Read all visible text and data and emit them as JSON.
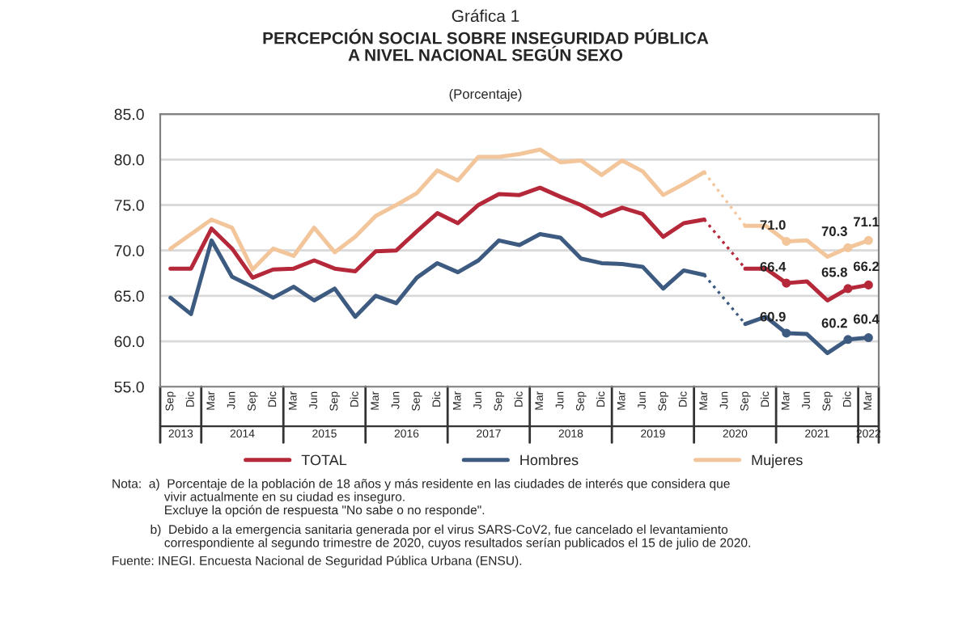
{
  "chart_data": {
    "type": "line",
    "title": "Gráfica 1",
    "subtitle": "PERCEPCIÓN SOCIAL SOBRE INSEGURIDAD PÚBLICA\nA NIVEL NACIONAL SEGÚN SEXO",
    "categories": [
      "Sep",
      "Dic",
      "Mar",
      "Jun",
      "Sep",
      "Dic",
      "Mar",
      "Jun",
      "Sep",
      "Dic",
      "Mar",
      "Jun",
      "Sep",
      "Dic",
      "Mar",
      "Jun",
      "Sep",
      "Dic",
      "Mar",
      "Jun",
      "Sep",
      "Dic",
      "Mar",
      "Jun",
      "Sep",
      "Dic",
      "Mar",
      "Jun",
      "Sep",
      "Dic",
      "Mar",
      "Jun",
      "Sep",
      "Dic",
      "Mar"
    ],
    "series": [
      {
        "name": "TOTAL",
        "color": "#b5283a",
        "values": [
          68.0,
          68.0,
          72.4,
          70.2,
          67.0,
          67.9,
          68.0,
          68.9,
          68.0,
          67.7,
          69.9,
          70.0,
          72.1,
          74.1,
          73.0,
          75.0,
          76.2,
          76.1,
          76.9,
          75.9,
          75.0,
          73.8,
          74.7,
          74.0,
          71.5,
          73.0,
          73.4,
          null,
          68.0,
          68.0,
          66.4,
          66.6,
          64.5,
          65.8,
          66.2
        ],
        "value_labels": [
          null,
          null,
          null,
          null,
          null,
          null,
          null,
          null,
          null,
          null,
          null,
          null,
          null,
          null,
          null,
          null,
          null,
          null,
          null,
          null,
          null,
          null,
          null,
          null,
          null,
          null,
          null,
          null,
          null,
          null,
          "66.4",
          null,
          null,
          "65.8",
          "66.2"
        ]
      },
      {
        "name": "Hombres",
        "color": "#3d5a80",
        "values": [
          64.8,
          63.0,
          71.1,
          67.1,
          66.0,
          64.8,
          66.0,
          64.5,
          65.8,
          62.7,
          65.0,
          64.2,
          67.0,
          68.6,
          67.6,
          68.9,
          71.1,
          70.6,
          71.8,
          71.4,
          69.1,
          68.6,
          68.5,
          68.2,
          65.8,
          67.8,
          67.3,
          null,
          61.9,
          62.7,
          60.9,
          60.8,
          58.7,
          60.2,
          60.4
        ],
        "value_labels": [
          null,
          null,
          null,
          null,
          null,
          null,
          null,
          null,
          null,
          null,
          null,
          null,
          null,
          null,
          null,
          null,
          null,
          null,
          null,
          null,
          null,
          null,
          null,
          null,
          null,
          null,
          null,
          null,
          null,
          null,
          "60.9",
          null,
          null,
          "60.2",
          "60.4"
        ]
      },
      {
        "name": "Mujeres",
        "color": "#f3c59b",
        "values": [
          70.2,
          71.8,
          73.4,
          72.5,
          67.9,
          70.2,
          69.4,
          72.5,
          69.8,
          71.5,
          73.8,
          75.0,
          76.3,
          78.8,
          77.7,
          80.3,
          80.3,
          80.6,
          81.1,
          79.7,
          79.9,
          78.3,
          79.9,
          78.7,
          76.1,
          77.3,
          78.6,
          null,
          72.7,
          72.7,
          71.0,
          71.1,
          69.3,
          70.3,
          71.1
        ],
        "value_labels": [
          null,
          null,
          null,
          null,
          null,
          null,
          null,
          null,
          null,
          null,
          null,
          null,
          null,
          null,
          null,
          null,
          null,
          null,
          null,
          null,
          null,
          null,
          null,
          null,
          null,
          null,
          null,
          null,
          null,
          null,
          "71.0",
          null,
          null,
          "70.3",
          "71.1"
        ]
      }
    ],
    "ylim": [
      55,
      85
    ],
    "yticks": [
      {
        "value": 55,
        "label": "55.0"
      },
      {
        "value": 60,
        "label": "60.0"
      },
      {
        "value": 65,
        "label": "65.0"
      },
      {
        "value": 70,
        "label": "70.0"
      },
      {
        "value": 75,
        "label": "75.0"
      },
      {
        "value": 80,
        "label": "80.0"
      },
      {
        "value": 85,
        "label": "85.0"
      }
    ],
    "grid": "y",
    "legend": "bottom",
    "line_style": "solid",
    "annotations": [
      "(Porcentaje)",
      "2013",
      "2014",
      "2015",
      "2016",
      "2017",
      "2018",
      "2019",
      "2020",
      "2021",
      "2022",
      "Nota:  a)  Porcentaje de la población de 18 años y más residente en las ciudades de interés que considera que\n               vivir actualmente en su ciudad es inseguro.\n               Excluye la opción de respuesta \"No sabe o no responde\".",
      "           b)  Debido a la emergencia sanitaria generada por el virus SARS-CoV2, fue cancelado el levantamiento\n               correspondiente al segundo trimestre de 2020, cuyos resultados serían publicados el 15 de julio de 2020.",
      "Fuente: INEGI. Encuesta Nacional de Seguridad Pública Urbana (ENSU)."
    ]
  }
}
